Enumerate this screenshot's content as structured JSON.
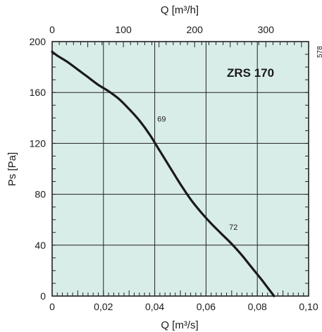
{
  "chart_data": {
    "type": "line",
    "model_label": "ZRS 170",
    "side_code": "578",
    "xlabel": "Q [m³/s]",
    "x2label": "Q [m³/h]",
    "ylabel": "Ps [Pa]",
    "xlim": [
      0,
      0.1
    ],
    "ylim": [
      0,
      200
    ],
    "x2lim": [
      0,
      360
    ],
    "x_ticks": [
      {
        "value": 0,
        "label": "0"
      },
      {
        "value": 0.02,
        "label": "0,02"
      },
      {
        "value": 0.04,
        "label": "0,04"
      },
      {
        "value": 0.06,
        "label": "0,06"
      },
      {
        "value": 0.08,
        "label": "0,08"
      },
      {
        "value": 0.1,
        "label": "0,10"
      }
    ],
    "x2_ticks": [
      {
        "value": 0,
        "label": "0"
      },
      {
        "value": 100,
        "label": "100"
      },
      {
        "value": 200,
        "label": "200"
      },
      {
        "value": 300,
        "label": "300"
      }
    ],
    "y_ticks": [
      {
        "value": 0,
        "label": "0"
      },
      {
        "value": 40,
        "label": "40"
      },
      {
        "value": 80,
        "label": "80"
      },
      {
        "value": 120,
        "label": "120"
      },
      {
        "value": 160,
        "label": "160"
      },
      {
        "value": 200,
        "label": "200"
      }
    ],
    "grid": true,
    "colors": {
      "background": "#d9ede8",
      "curve": "#1a1a1a",
      "grid": "#222222"
    },
    "series": [
      {
        "x": [
          0,
          0.002,
          0.006,
          0.01,
          0.014,
          0.018,
          0.022,
          0.026,
          0.03,
          0.034,
          0.038,
          0.042,
          0.046,
          0.05,
          0.054,
          0.058,
          0.062,
          0.066,
          0.07,
          0.074,
          0.078,
          0.082,
          0.0865
        ],
        "y": [
          192,
          189,
          184,
          178,
          172,
          166,
          161,
          155,
          147,
          138,
          127,
          114,
          101,
          88,
          76,
          66,
          57,
          49,
          41,
          32,
          22,
          12,
          0
        ]
      }
    ],
    "annotations": [
      {
        "text": "69",
        "x": 0.041,
        "y": 137
      },
      {
        "text": "72",
        "x": 0.069,
        "y": 52
      }
    ]
  }
}
